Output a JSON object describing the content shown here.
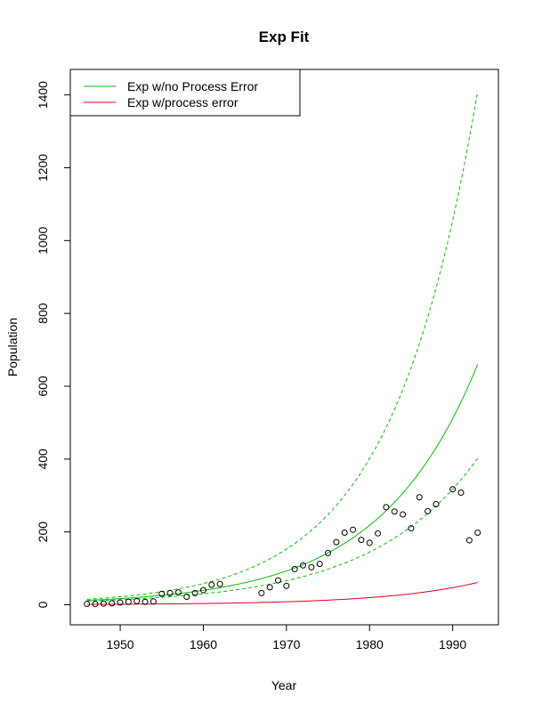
{
  "chart_data": {
    "type": "line",
    "title": "Exp Fit",
    "xlabel": "Year",
    "ylabel": "Population",
    "xlim": [
      1944,
      1995.5
    ],
    "ylim": [
      -55,
      1470
    ],
    "x_ticks": [
      1950,
      1960,
      1970,
      1980,
      1990
    ],
    "y_ticks": [
      0,
      200,
      400,
      600,
      800,
      1000,
      1200,
      1400
    ],
    "legend": {
      "position": "top-left",
      "entries": [
        {
          "label": "Exp w/no Process Error",
          "color": "#00c000"
        },
        {
          "label": "Exp w/process error",
          "color": "#e0001a"
        }
      ]
    },
    "points": {
      "x": [
        1946,
        1947,
        1948,
        1949,
        1950,
        1951,
        1952,
        1953,
        1954,
        1955,
        1956,
        1957,
        1958,
        1959,
        1960,
        1961,
        1962,
        1967,
        1968,
        1969,
        1970,
        1971,
        1972,
        1973,
        1974,
        1975,
        1976,
        1977,
        1978,
        1979,
        1980,
        1981,
        1982,
        1983,
        1984,
        1985,
        1986,
        1987,
        1988,
        1990,
        1991,
        1992,
        1993
      ],
      "y": [
        2,
        2,
        3,
        4,
        6,
        8,
        10,
        8,
        9,
        30,
        32,
        34,
        22,
        32,
        40,
        55,
        57,
        32,
        48,
        67,
        52,
        98,
        108,
        103,
        112,
        142,
        172,
        198,
        206,
        178,
        170,
        196,
        268,
        256,
        248,
        210,
        295,
        257,
        276,
        317,
        308,
        177,
        198
      ]
    },
    "series": [
      {
        "name": "Exp w/no Process Error",
        "color": "#00c000",
        "style": "solid",
        "x": [
          1946,
          1993
        ],
        "y0": 12,
        "y_end": 660
      },
      {
        "name": "Exp w/no Process Error upper",
        "color": "#00c000",
        "style": "dashed",
        "x": [
          1946,
          1993
        ],
        "y0": 15,
        "y_end": 1410
      },
      {
        "name": "Exp w/no Process Error lower",
        "color": "#00c000",
        "style": "dashed",
        "x": [
          1946,
          1993
        ],
        "y0": 10,
        "y_end": 402
      },
      {
        "name": "Exp w/process error",
        "color": "#e0001a",
        "style": "solid",
        "x": [
          1946,
          1993
        ],
        "y0": 1,
        "y_end": 61
      }
    ]
  }
}
